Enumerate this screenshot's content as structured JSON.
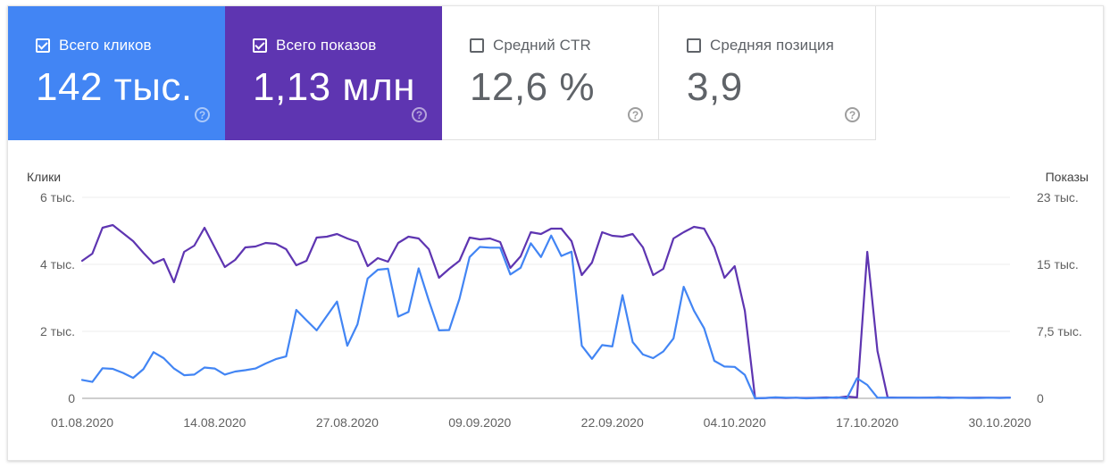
{
  "tiles": [
    {
      "label": "Всего кликов",
      "value": "142 тыс.",
      "checked": true,
      "color": "#4285f4"
    },
    {
      "label": "Всего показов",
      "value": "1,13 млн",
      "checked": true,
      "color": "#5e35b1"
    },
    {
      "label": "Средний CTR",
      "value": "12,6 %",
      "checked": false,
      "color": "#ffffff"
    },
    {
      "label": "Средняя позиция",
      "value": "3,9",
      "checked": false,
      "color": "#ffffff"
    }
  ],
  "help_glyph": "?",
  "chart_data": {
    "type": "line",
    "ylabel_left": "Клики",
    "ylabel_right": "Показы",
    "left_ticks": [
      "0",
      "2 тыс.",
      "4 тыс.",
      "6 тыс."
    ],
    "right_ticks": [
      "0",
      "7,5 тыс.",
      "15 тыс.",
      "23 тыс."
    ],
    "x_ticks": [
      "01.08.2020",
      "14.08.2020",
      "27.08.2020",
      "09.09.2020",
      "22.09.2020",
      "04.10.2020",
      "17.10.2020",
      "30.10.2020"
    ],
    "x_start": "01.08.2020",
    "x_end": "31.10.2020",
    "ylim_left": [
      0,
      6000
    ],
    "ylim_right": [
      0,
      22500
    ],
    "grid": true,
    "series": [
      {
        "name": "Всего кликов",
        "axis": "left",
        "color": "#4285f4",
        "values": [
          550,
          490,
          900,
          880,
          760,
          610,
          870,
          1380,
          1200,
          890,
          690,
          710,
          920,
          890,
          710,
          800,
          840,
          890,
          1040,
          1170,
          1250,
          2640,
          2330,
          2030,
          2460,
          2890,
          1570,
          2210,
          3580,
          3840,
          3870,
          2440,
          2580,
          3880,
          2920,
          2030,
          2040,
          2970,
          4220,
          4520,
          4500,
          4500,
          3700,
          3900,
          4630,
          4220,
          4860,
          4250,
          4380,
          1570,
          1180,
          1590,
          1550,
          3080,
          1680,
          1310,
          1200,
          1400,
          1790,
          3330,
          2620,
          2090,
          1120,
          950,
          940,
          700,
          0,
          10,
          30,
          20,
          20,
          0,
          10,
          10,
          30,
          0,
          600,
          400,
          20,
          20,
          20,
          20,
          20,
          20,
          30,
          10,
          20,
          10,
          10,
          20,
          10,
          20
        ]
      },
      {
        "name": "Всего показов",
        "axis": "right",
        "color": "#5e35b1",
        "values": [
          15400,
          16200,
          19100,
          19400,
          18500,
          17600,
          16300,
          15100,
          15600,
          13000,
          16400,
          17100,
          19100,
          16900,
          14700,
          15500,
          16900,
          17000,
          17400,
          17300,
          16700,
          14900,
          15400,
          18000,
          18100,
          18400,
          17900,
          17500,
          14800,
          15700,
          15300,
          17400,
          18100,
          17900,
          16700,
          13500,
          14500,
          15400,
          18000,
          17800,
          17900,
          17500,
          14600,
          15900,
          18600,
          18400,
          19000,
          19000,
          17600,
          13800,
          15200,
          18600,
          18200,
          18100,
          18400,
          16900,
          13800,
          14500,
          17900,
          18600,
          19200,
          19000,
          16900,
          13500,
          14800,
          9800,
          0,
          40,
          80,
          40,
          60,
          40,
          60,
          100,
          60,
          200,
          100,
          16400,
          5300,
          100,
          80,
          80,
          60,
          80,
          100,
          80,
          60,
          60,
          80,
          60,
          60,
          80
        ]
      }
    ]
  }
}
